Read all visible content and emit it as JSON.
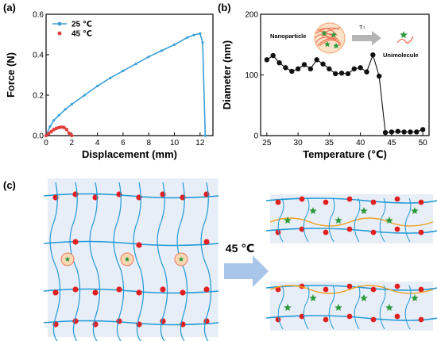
{
  "panels": {
    "a": "(a)",
    "b": "(b)",
    "c": "(c)"
  },
  "chart_data": [
    {
      "type": "line",
      "xlabel": "Displacement (mm)",
      "ylabel": "Force (N)",
      "xlim": [
        0,
        13
      ],
      "ylim": [
        0,
        0.6
      ],
      "xticks": [
        "0",
        "2",
        "4",
        "6",
        "8",
        "10",
        "12"
      ],
      "yticks": [
        "0.0",
        "0.2",
        "0.4",
        "0.6"
      ],
      "legend_position": "top-left",
      "series": [
        {
          "name": "25 ℃",
          "color": "#3a9fd8",
          "x": [
            0,
            0.3,
            0.6,
            1.0,
            1.5,
            2.0,
            3.0,
            4.0,
            5.0,
            6.0,
            7.0,
            8.0,
            9.0,
            10.0,
            11.0,
            11.5,
            12.0,
            12.2,
            12.4
          ],
          "y": [
            0,
            0.045,
            0.075,
            0.1,
            0.13,
            0.155,
            0.2,
            0.245,
            0.285,
            0.32,
            0.355,
            0.39,
            0.42,
            0.45,
            0.485,
            0.497,
            0.505,
            0.46,
            0
          ]
        },
        {
          "name": "45 ℃",
          "color": "#e03a3a",
          "x": [
            0,
            0.2,
            0.4,
            0.6,
            0.8,
            1.0,
            1.2,
            1.4,
            1.6,
            1.8,
            2.0
          ],
          "y": [
            0,
            0.01,
            0.02,
            0.03,
            0.036,
            0.04,
            0.042,
            0.04,
            0.03,
            0.012,
            0
          ]
        }
      ]
    },
    {
      "type": "scatter",
      "xlabel": "Temperature (℃)",
      "ylabel": "Diameter (nm)",
      "xlim": [
        24,
        51
      ],
      "ylim": [
        0,
        200
      ],
      "xticks": [
        "25",
        "30",
        "35",
        "40",
        "45",
        "50"
      ],
      "yticks": [
        "0",
        "100",
        "200"
      ],
      "series": [
        {
          "color": "#111111",
          "x": [
            25,
            26,
            27,
            28,
            29,
            30,
            31,
            32,
            33,
            34,
            35,
            36,
            37,
            38,
            39,
            40,
            41,
            42,
            43,
            44,
            45,
            46,
            47,
            48,
            49,
            50
          ],
          "y": [
            125,
            132,
            120,
            112,
            106,
            110,
            117,
            110,
            125,
            118,
            110,
            102,
            103,
            102,
            110,
            112,
            105,
            133,
            98,
            5,
            6,
            7,
            6,
            6,
            6,
            10
          ]
        }
      ],
      "annotations": {
        "left": "Nanoparticle",
        "arrow": "T↑",
        "right": "Unimolecule"
      }
    }
  ],
  "panel_c": {
    "temperature_label": "45 ℃"
  }
}
